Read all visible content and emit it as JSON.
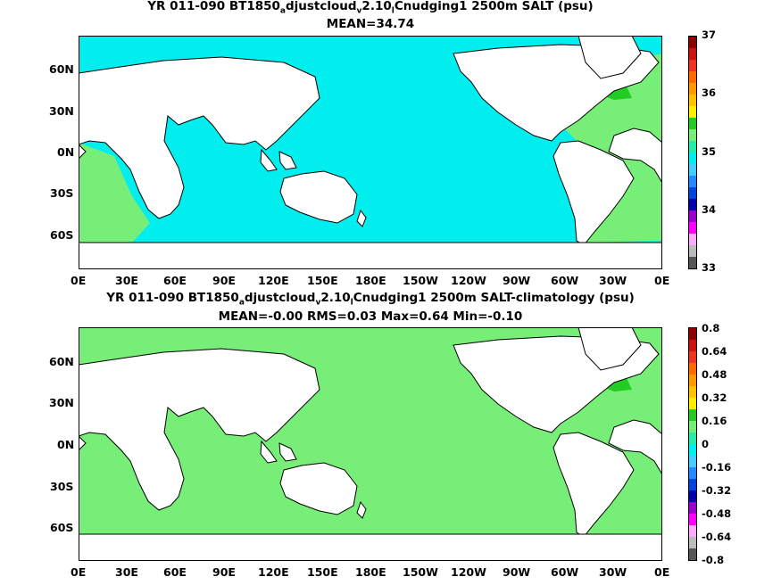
{
  "panels": [
    {
      "title_parts": [
        "YR 011-090 BT1850",
        "a",
        "djustcloud",
        "v",
        "2.10",
        "l",
        "Cnudging1 2500m SALT (psu)"
      ],
      "stats": "MEAN=34.74",
      "colorbar": {
        "labels": [
          "37",
          "36",
          "35",
          "34",
          "33"
        ],
        "colors": [
          "#8b0000",
          "#cc1111",
          "#ee3322",
          "#ff6a00",
          "#ff9900",
          "#ffc200",
          "#ffee00",
          "#22cc22",
          "#77ee77",
          "#22eeaa",
          "#00eeee",
          "#44ccff",
          "#2288ff",
          "#0044dd",
          "#0000aa",
          "#9900cc",
          "#ff00ff",
          "#ffaaff",
          "#bbbbbb",
          "#555555"
        ]
      },
      "fill": {
        "pacific_indian": "#00eeee",
        "atlantic": "#77ee77",
        "patch_dark": "#22cc22",
        "patch_warm": "#ffee00"
      }
    },
    {
      "title_parts": [
        "YR 011-090 BT1850",
        "a",
        "djustcloud",
        "v",
        "2.10",
        "l",
        "Cnudging1 2500m SALT-climatology (psu)"
      ],
      "stats": "MEAN=-0.00   RMS=0.03   Max=0.64   Min=-0.10",
      "colorbar": {
        "labels": [
          "0.8",
          "0.64",
          "0.48",
          "0.32",
          "0.16",
          "0",
          "-0.16",
          "-0.32",
          "-0.48",
          "-0.64",
          "-0.8"
        ],
        "colors": [
          "#8b0000",
          "#cc1111",
          "#ee3322",
          "#ff6a00",
          "#ff9900",
          "#ffc200",
          "#ffee00",
          "#22cc22",
          "#77ee77",
          "#22eeaa",
          "#00eeee",
          "#44ccff",
          "#2288ff",
          "#0044dd",
          "#0000aa",
          "#9900cc",
          "#ff00ff",
          "#ffaaff",
          "#bbbbbb",
          "#555555"
        ]
      },
      "fill": {
        "pacific_indian": "#77ee77",
        "atlantic": "#77ee77",
        "patch_dark": "#22cc22",
        "patch_warm": "#ff6a00"
      }
    }
  ],
  "axes": {
    "lon_labels": [
      "0E",
      "30E",
      "60E",
      "90E",
      "120E",
      "150E",
      "180E",
      "150W",
      "120W",
      "90W",
      "60W",
      "30W",
      "0E"
    ],
    "lat_labels": [
      "60N",
      "30N",
      "0N",
      "30S",
      "60S"
    ]
  }
}
